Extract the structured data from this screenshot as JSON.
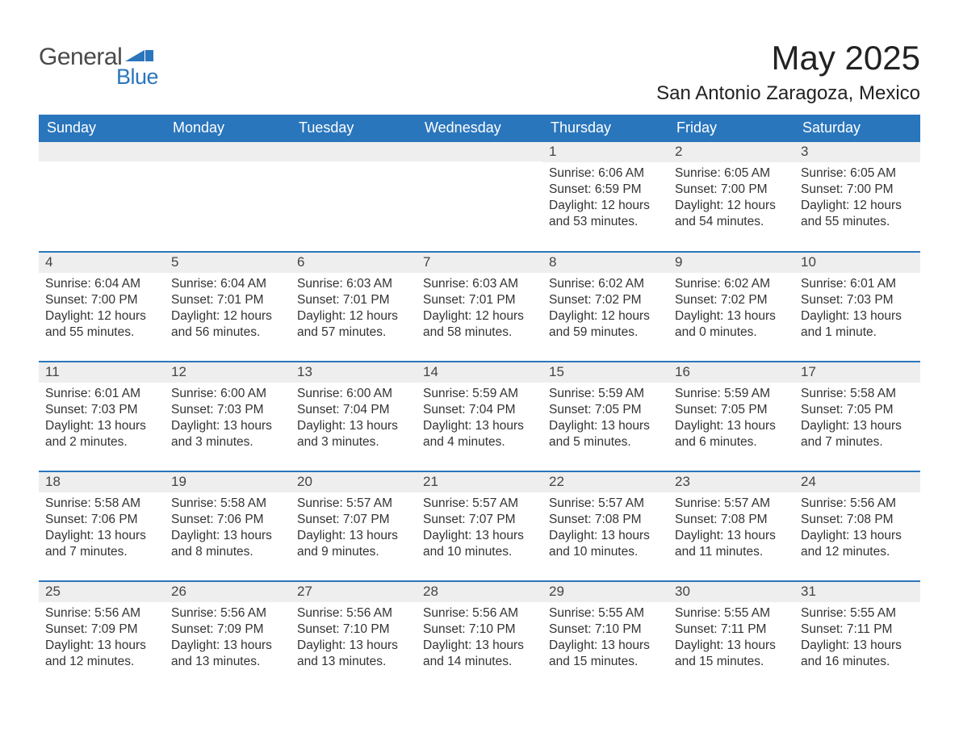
{
  "logo": {
    "word1": "General",
    "word2": "Blue",
    "text_color": "#4a4a4a",
    "accent_color": "#2a76bc"
  },
  "title": {
    "month": "May 2025",
    "location": "San Antonio Zaragoza, Mexico"
  },
  "colors": {
    "header_bg": "#2a76bc",
    "header_text": "#ffffff",
    "daynum_bg": "#eeeeee",
    "week_border": "#2a76bc",
    "body_text": "#333333",
    "page_bg": "#ffffff"
  },
  "day_headers": [
    "Sunday",
    "Monday",
    "Tuesday",
    "Wednesday",
    "Thursday",
    "Friday",
    "Saturday"
  ],
  "weeks": [
    [
      {
        "n": "",
        "sunrise": "",
        "sunset": "",
        "daylight": ""
      },
      {
        "n": "",
        "sunrise": "",
        "sunset": "",
        "daylight": ""
      },
      {
        "n": "",
        "sunrise": "",
        "sunset": "",
        "daylight": ""
      },
      {
        "n": "",
        "sunrise": "",
        "sunset": "",
        "daylight": ""
      },
      {
        "n": "1",
        "sunrise": "Sunrise: 6:06 AM",
        "sunset": "Sunset: 6:59 PM",
        "daylight": "Daylight: 12 hours and 53 minutes."
      },
      {
        "n": "2",
        "sunrise": "Sunrise: 6:05 AM",
        "sunset": "Sunset: 7:00 PM",
        "daylight": "Daylight: 12 hours and 54 minutes."
      },
      {
        "n": "3",
        "sunrise": "Sunrise: 6:05 AM",
        "sunset": "Sunset: 7:00 PM",
        "daylight": "Daylight: 12 hours and 55 minutes."
      }
    ],
    [
      {
        "n": "4",
        "sunrise": "Sunrise: 6:04 AM",
        "sunset": "Sunset: 7:00 PM",
        "daylight": "Daylight: 12 hours and 55 minutes."
      },
      {
        "n": "5",
        "sunrise": "Sunrise: 6:04 AM",
        "sunset": "Sunset: 7:01 PM",
        "daylight": "Daylight: 12 hours and 56 minutes."
      },
      {
        "n": "6",
        "sunrise": "Sunrise: 6:03 AM",
        "sunset": "Sunset: 7:01 PM",
        "daylight": "Daylight: 12 hours and 57 minutes."
      },
      {
        "n": "7",
        "sunrise": "Sunrise: 6:03 AM",
        "sunset": "Sunset: 7:01 PM",
        "daylight": "Daylight: 12 hours and 58 minutes."
      },
      {
        "n": "8",
        "sunrise": "Sunrise: 6:02 AM",
        "sunset": "Sunset: 7:02 PM",
        "daylight": "Daylight: 12 hours and 59 minutes."
      },
      {
        "n": "9",
        "sunrise": "Sunrise: 6:02 AM",
        "sunset": "Sunset: 7:02 PM",
        "daylight": "Daylight: 13 hours and 0 minutes."
      },
      {
        "n": "10",
        "sunrise": "Sunrise: 6:01 AM",
        "sunset": "Sunset: 7:03 PM",
        "daylight": "Daylight: 13 hours and 1 minute."
      }
    ],
    [
      {
        "n": "11",
        "sunrise": "Sunrise: 6:01 AM",
        "sunset": "Sunset: 7:03 PM",
        "daylight": "Daylight: 13 hours and 2 minutes."
      },
      {
        "n": "12",
        "sunrise": "Sunrise: 6:00 AM",
        "sunset": "Sunset: 7:03 PM",
        "daylight": "Daylight: 13 hours and 3 minutes."
      },
      {
        "n": "13",
        "sunrise": "Sunrise: 6:00 AM",
        "sunset": "Sunset: 7:04 PM",
        "daylight": "Daylight: 13 hours and 3 minutes."
      },
      {
        "n": "14",
        "sunrise": "Sunrise: 5:59 AM",
        "sunset": "Sunset: 7:04 PM",
        "daylight": "Daylight: 13 hours and 4 minutes."
      },
      {
        "n": "15",
        "sunrise": "Sunrise: 5:59 AM",
        "sunset": "Sunset: 7:05 PM",
        "daylight": "Daylight: 13 hours and 5 minutes."
      },
      {
        "n": "16",
        "sunrise": "Sunrise: 5:59 AM",
        "sunset": "Sunset: 7:05 PM",
        "daylight": "Daylight: 13 hours and 6 minutes."
      },
      {
        "n": "17",
        "sunrise": "Sunrise: 5:58 AM",
        "sunset": "Sunset: 7:05 PM",
        "daylight": "Daylight: 13 hours and 7 minutes."
      }
    ],
    [
      {
        "n": "18",
        "sunrise": "Sunrise: 5:58 AM",
        "sunset": "Sunset: 7:06 PM",
        "daylight": "Daylight: 13 hours and 7 minutes."
      },
      {
        "n": "19",
        "sunrise": "Sunrise: 5:58 AM",
        "sunset": "Sunset: 7:06 PM",
        "daylight": "Daylight: 13 hours and 8 minutes."
      },
      {
        "n": "20",
        "sunrise": "Sunrise: 5:57 AM",
        "sunset": "Sunset: 7:07 PM",
        "daylight": "Daylight: 13 hours and 9 minutes."
      },
      {
        "n": "21",
        "sunrise": "Sunrise: 5:57 AM",
        "sunset": "Sunset: 7:07 PM",
        "daylight": "Daylight: 13 hours and 10 minutes."
      },
      {
        "n": "22",
        "sunrise": "Sunrise: 5:57 AM",
        "sunset": "Sunset: 7:08 PM",
        "daylight": "Daylight: 13 hours and 10 minutes."
      },
      {
        "n": "23",
        "sunrise": "Sunrise: 5:57 AM",
        "sunset": "Sunset: 7:08 PM",
        "daylight": "Daylight: 13 hours and 11 minutes."
      },
      {
        "n": "24",
        "sunrise": "Sunrise: 5:56 AM",
        "sunset": "Sunset: 7:08 PM",
        "daylight": "Daylight: 13 hours and 12 minutes."
      }
    ],
    [
      {
        "n": "25",
        "sunrise": "Sunrise: 5:56 AM",
        "sunset": "Sunset: 7:09 PM",
        "daylight": "Daylight: 13 hours and 12 minutes."
      },
      {
        "n": "26",
        "sunrise": "Sunrise: 5:56 AM",
        "sunset": "Sunset: 7:09 PM",
        "daylight": "Daylight: 13 hours and 13 minutes."
      },
      {
        "n": "27",
        "sunrise": "Sunrise: 5:56 AM",
        "sunset": "Sunset: 7:10 PM",
        "daylight": "Daylight: 13 hours and 13 minutes."
      },
      {
        "n": "28",
        "sunrise": "Sunrise: 5:56 AM",
        "sunset": "Sunset: 7:10 PM",
        "daylight": "Daylight: 13 hours and 14 minutes."
      },
      {
        "n": "29",
        "sunrise": "Sunrise: 5:55 AM",
        "sunset": "Sunset: 7:10 PM",
        "daylight": "Daylight: 13 hours and 15 minutes."
      },
      {
        "n": "30",
        "sunrise": "Sunrise: 5:55 AM",
        "sunset": "Sunset: 7:11 PM",
        "daylight": "Daylight: 13 hours and 15 minutes."
      },
      {
        "n": "31",
        "sunrise": "Sunrise: 5:55 AM",
        "sunset": "Sunset: 7:11 PM",
        "daylight": "Daylight: 13 hours and 16 minutes."
      }
    ]
  ]
}
